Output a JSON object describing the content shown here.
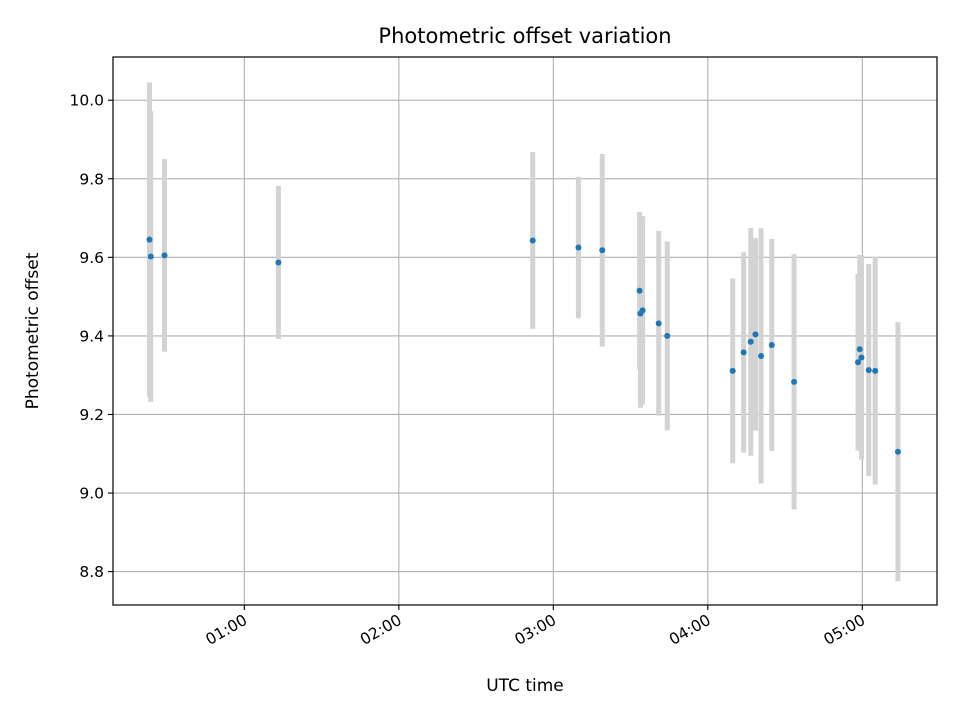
{
  "chart_data": {
    "type": "scatter",
    "title": "Photometric offset variation",
    "xlabel": "UTC time",
    "ylabel": "Photometric offset",
    "x_axis": "time-of-day",
    "xlim": [
      "00:09",
      "05:29"
    ],
    "ylim": [
      8.715,
      10.11
    ],
    "x_ticks": [
      "01:00",
      "02:00",
      "03:00",
      "04:00",
      "05:00"
    ],
    "y_ticks": [
      8.8,
      9.0,
      9.2,
      9.4,
      9.6,
      9.8,
      10.0
    ],
    "grid": true,
    "errorbar_color": "#d3d3d3",
    "point_color": "#1f77b4",
    "points": [
      {
        "x": "00:23:10",
        "y": 9.645,
        "yerr": 0.4
      },
      {
        "x": "00:23:40",
        "y": 9.602,
        "yerr": 0.37
      },
      {
        "x": "00:29:00",
        "y": 9.605,
        "yerr": 0.245
      },
      {
        "x": "01:13:15",
        "y": 9.587,
        "yerr": 0.195
      },
      {
        "x": "02:52:00",
        "y": 9.643,
        "yerr": 0.225
      },
      {
        "x": "03:09:45",
        "y": 9.625,
        "yerr": 0.18
      },
      {
        "x": "03:19:00",
        "y": 9.618,
        "yerr": 0.245
      },
      {
        "x": "03:33:30",
        "y": 9.515,
        "yerr": 0.2
      },
      {
        "x": "03:33:50",
        "y": 9.457,
        "yerr": 0.24
      },
      {
        "x": "03:34:40",
        "y": 9.465,
        "yerr": 0.24
      },
      {
        "x": "03:40:55",
        "y": 9.432,
        "yerr": 0.235
      },
      {
        "x": "03:44:15",
        "y": 9.4,
        "yerr": 0.24
      },
      {
        "x": "04:09:40",
        "y": 9.311,
        "yerr": 0.235
      },
      {
        "x": "04:13:55",
        "y": 9.358,
        "yerr": 0.255
      },
      {
        "x": "04:16:40",
        "y": 9.385,
        "yerr": 0.29
      },
      {
        "x": "04:18:30",
        "y": 9.404,
        "yerr": 0.245
      },
      {
        "x": "04:20:40",
        "y": 9.349,
        "yerr": 0.325
      },
      {
        "x": "04:24:50",
        "y": 9.377,
        "yerr": 0.27
      },
      {
        "x": "04:33:30",
        "y": 9.283,
        "yerr": 0.325
      },
      {
        "x": "04:58:20",
        "y": 9.333,
        "yerr": 0.225
      },
      {
        "x": "04:59:00",
        "y": 9.366,
        "yerr": 0.24
      },
      {
        "x": "04:59:40",
        "y": 9.345,
        "yerr": 0.26
      },
      {
        "x": "05:02:30",
        "y": 9.313,
        "yerr": 0.27
      },
      {
        "x": "05:05:00",
        "y": 9.311,
        "yerr": 0.29
      },
      {
        "x": "05:13:50",
        "y": 9.105,
        "yerr": 0.33
      }
    ]
  }
}
